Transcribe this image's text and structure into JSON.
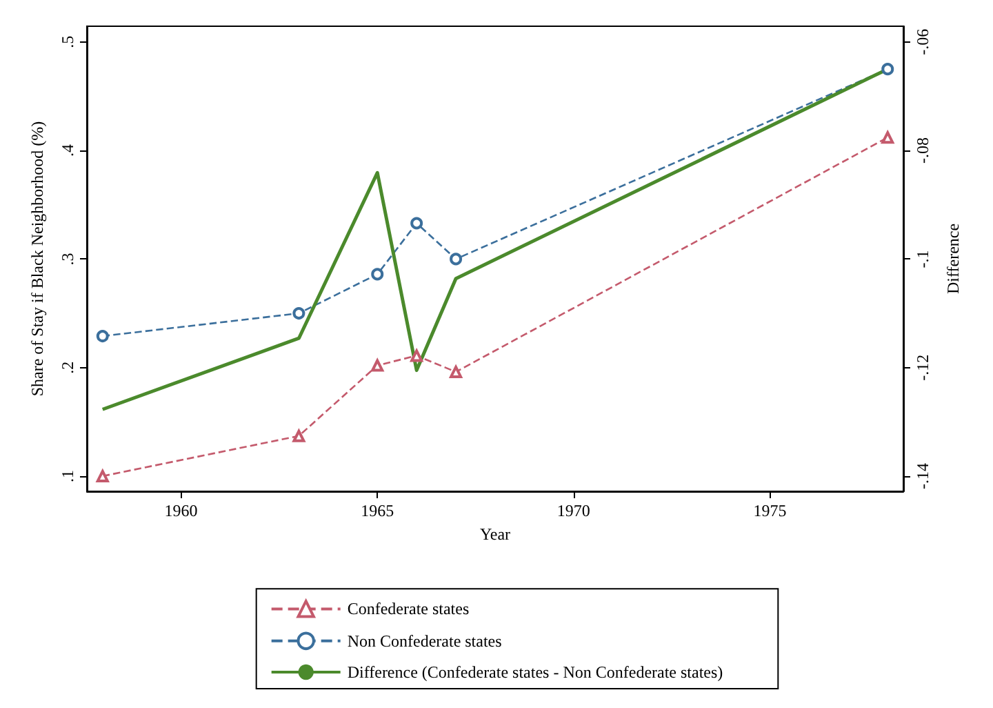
{
  "chart_data": {
    "type": "line",
    "xlabel": "Year",
    "ylabel": "Share of Stay if Black Neighborhood (%)",
    "y2label": "Difference",
    "x": [
      1958,
      1963,
      1965,
      1966,
      1967,
      1978
    ],
    "xlim": [
      1957.6,
      1978.4
    ],
    "xticks": [
      1960,
      1965,
      1970,
      1975
    ],
    "ylim": [
      0.086,
      0.5145
    ],
    "yticks": [
      {
        "value": 0.1,
        "label": ".1"
      },
      {
        "value": 0.2,
        "label": ".2"
      },
      {
        "value": 0.3,
        "label": ".3"
      },
      {
        "value": 0.4,
        "label": ".4"
      },
      {
        "value": 0.5,
        "label": ".5"
      }
    ],
    "y2lim": [
      -0.1428,
      -0.0571
    ],
    "y2ticks": [
      {
        "value": -0.14,
        "label": "-.14"
      },
      {
        "value": -0.12,
        "label": "-.12"
      },
      {
        "value": -0.1,
        "label": "-.1"
      },
      {
        "value": -0.08,
        "label": "-.08"
      },
      {
        "value": -0.06,
        "label": "-.06"
      }
    ],
    "grid": false,
    "legend": "bottom",
    "series": [
      {
        "name": "Confederate states",
        "color": "#c45a6c",
        "marker": "triangle",
        "line_style": "dashed",
        "values": [
          0.1,
          0.137,
          0.202,
          0.211,
          0.196,
          0.412
        ]
      },
      {
        "name": "Non Confederate states",
        "color": "#3b6f9c",
        "marker": "circle",
        "line_style": "dashed",
        "values": [
          0.229,
          0.25,
          0.286,
          0.333,
          0.3,
          0.475
        ]
      },
      {
        "name": "Difference (Confederate states - Non Confederate states)",
        "color": "#4b8a2c",
        "marker": "none",
        "line_style": "solid",
        "axis": "y2",
        "values": [
          -0.1277,
          -0.1146,
          -0.0841,
          -0.1205,
          -0.1036,
          -0.065
        ]
      }
    ]
  }
}
